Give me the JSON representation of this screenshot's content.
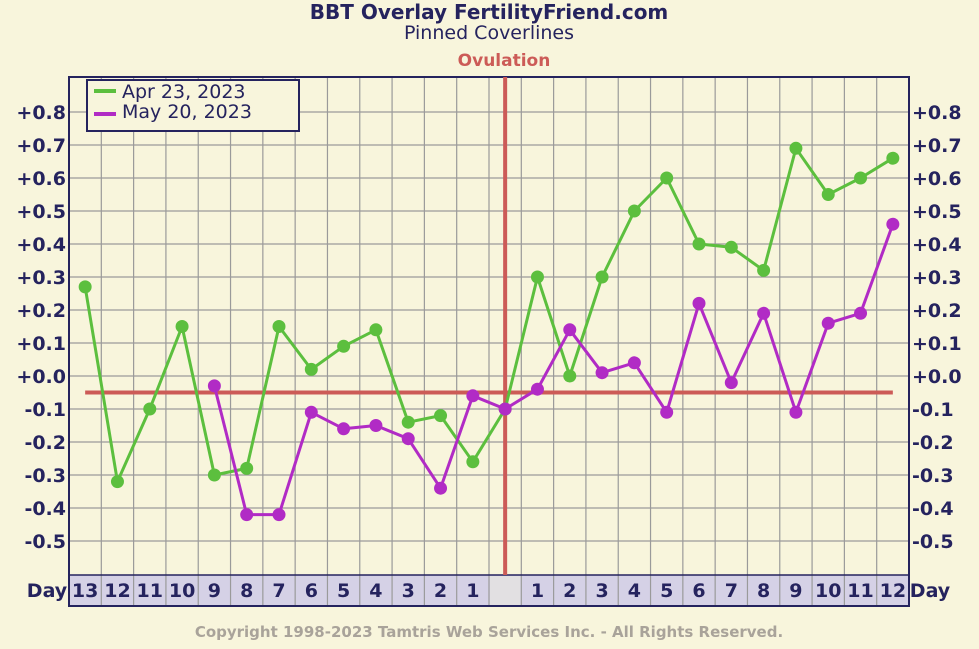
{
  "chart_data": {
    "type": "line",
    "title": "BBT Overlay FertilityFriend.com",
    "subtitle": "Pinned Coverlines",
    "ovulation_label": "Ovulation",
    "day_label": "Day",
    "copyright": "Copyright 1998-2023 Tamtris Web Services Inc. - All Rights Reserved.",
    "categories": [
      "13",
      "12",
      "11",
      "10",
      "9",
      "8",
      "7",
      "6",
      "5",
      "4",
      "3",
      "2",
      "1",
      "",
      "1",
      "2",
      "3",
      "4",
      "5",
      "6",
      "7",
      "8",
      "9",
      "10",
      "11",
      "12"
    ],
    "ovulation_index": 13,
    "coverline": -0.05,
    "ylim": [
      -0.6,
      0.9
    ],
    "yticks": [
      {
        "v": 0.8,
        "t": "+0.8"
      },
      {
        "v": 0.7,
        "t": "+0.7"
      },
      {
        "v": 0.6,
        "t": "+0.6"
      },
      {
        "v": 0.5,
        "t": "+0.5"
      },
      {
        "v": 0.4,
        "t": "+0.4"
      },
      {
        "v": 0.3,
        "t": "+0.3"
      },
      {
        "v": 0.2,
        "t": "+0.2"
      },
      {
        "v": 0.1,
        "t": "+0.1"
      },
      {
        "v": 0.0,
        "t": "+0.0"
      },
      {
        "v": -0.1,
        "t": "-0.1"
      },
      {
        "v": -0.2,
        "t": "-0.2"
      },
      {
        "v": -0.3,
        "t": "-0.3"
      },
      {
        "v": -0.4,
        "t": "-0.4"
      },
      {
        "v": -0.5,
        "t": "-0.5"
      }
    ],
    "legend_position": "top-left",
    "grid": true,
    "series": [
      {
        "name": "Apr 23, 2023",
        "color": "#5cbf3e",
        "values": [
          0.27,
          -0.32,
          -0.1,
          0.15,
          -0.3,
          -0.28,
          0.15,
          0.02,
          0.09,
          0.14,
          -0.14,
          -0.12,
          -0.26,
          -0.1,
          0.3,
          0.0,
          0.3,
          0.5,
          0.6,
          0.4,
          0.39,
          0.32,
          0.69,
          0.55,
          0.6,
          0.66
        ]
      },
      {
        "name": "May 20, 2023",
        "color": "#b12bc5",
        "values": [
          null,
          null,
          null,
          null,
          -0.03,
          -0.42,
          -0.42,
          -0.11,
          -0.16,
          -0.15,
          -0.19,
          -0.34,
          -0.06,
          -0.1,
          -0.04,
          0.14,
          0.01,
          0.04,
          -0.11,
          0.22,
          -0.02,
          0.19,
          -0.11,
          0.16,
          0.19,
          0.46
        ]
      }
    ],
    "colors": {
      "background": "#f8f5dc",
      "grid": "#9a9a9a",
      "frame": "#25235e",
      "ovulation": "#cc5b57",
      "xaxis_band": "#d5d1e6"
    }
  }
}
